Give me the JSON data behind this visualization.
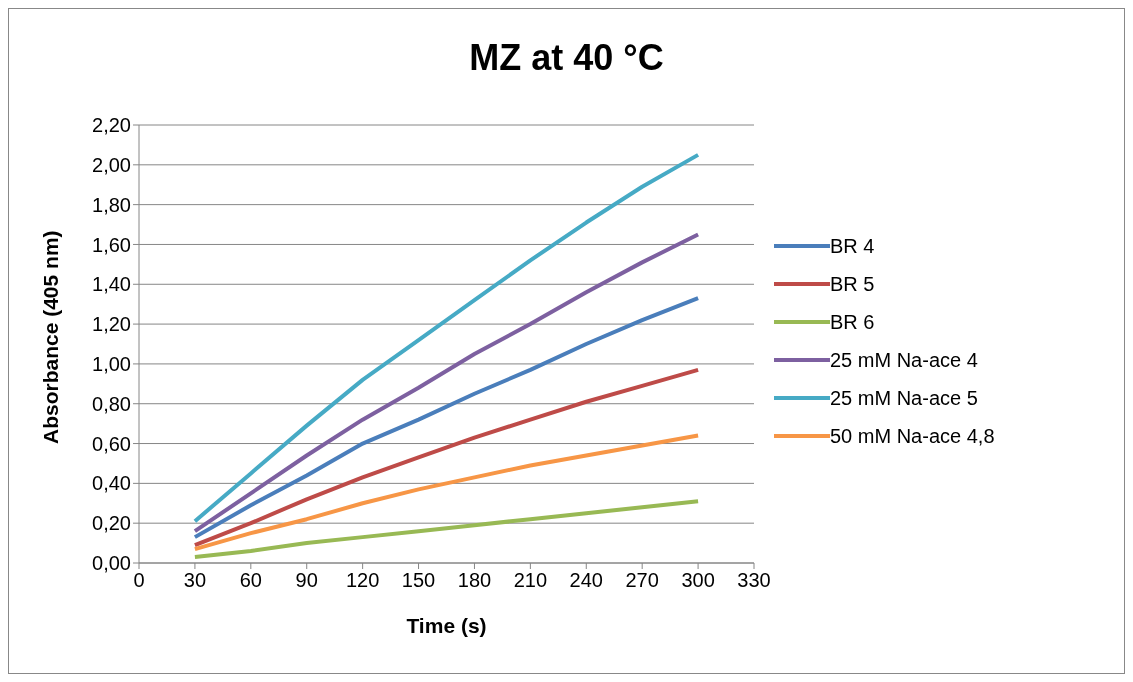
{
  "chart_data": {
    "type": "line",
    "title": "MZ at 40 °C",
    "xlabel": "Time (s)",
    "ylabel": "Absorbance (405 nm)",
    "x": [
      30,
      60,
      90,
      120,
      150,
      180,
      210,
      240,
      270,
      300
    ],
    "series": [
      {
        "name": "BR 4",
        "color": "#4a7ebb",
        "values": [
          0.13,
          0.29,
          0.44,
          0.6,
          0.72,
          0.85,
          0.97,
          1.1,
          1.22,
          1.33
        ]
      },
      {
        "name": "BR 5",
        "color": "#be4b48",
        "values": [
          0.09,
          0.2,
          0.32,
          0.43,
          0.53,
          0.63,
          0.72,
          0.81,
          0.89,
          0.97
        ]
      },
      {
        "name": "BR 6",
        "color": "#98b954",
        "values": [
          0.03,
          0.06,
          0.1,
          0.13,
          0.16,
          0.19,
          0.22,
          0.25,
          0.28,
          0.31
        ]
      },
      {
        "name": "25 mM Na-ace 4",
        "color": "#7d60a0",
        "values": [
          0.16,
          0.35,
          0.54,
          0.72,
          0.88,
          1.05,
          1.2,
          1.36,
          1.51,
          1.65
        ]
      },
      {
        "name": "25 mM Na-ace 5",
        "color": "#46aac5",
        "values": [
          0.21,
          0.45,
          0.69,
          0.92,
          1.12,
          1.32,
          1.52,
          1.71,
          1.89,
          2.05
        ]
      },
      {
        "name": "50 mM Na-ace 4,8",
        "color": "#f79646",
        "values": [
          0.07,
          0.15,
          0.22,
          0.3,
          0.37,
          0.43,
          0.49,
          0.54,
          0.59,
          0.64
        ]
      }
    ],
    "xlim": [
      0,
      330
    ],
    "xticks": [
      0,
      30,
      60,
      90,
      120,
      150,
      180,
      210,
      240,
      270,
      300,
      330
    ],
    "ylim": [
      0,
      2.2
    ],
    "yticks": [
      {
        "value": 0,
        "label": "0,00"
      },
      {
        "value": 0.2,
        "label": "0,20"
      },
      {
        "value": 0.4,
        "label": "0,40"
      },
      {
        "value": 0.6,
        "label": "0,60"
      },
      {
        "value": 0.8,
        "label": "0,80"
      },
      {
        "value": 1.0,
        "label": "1,00"
      },
      {
        "value": 1.2,
        "label": "1,20"
      },
      {
        "value": 1.4,
        "label": "1,40"
      },
      {
        "value": 1.6,
        "label": "1,60"
      },
      {
        "value": 1.8,
        "label": "1,80"
      },
      {
        "value": 2.0,
        "label": "2,00"
      },
      {
        "value": 2.2,
        "label": "2,20"
      }
    ],
    "grid": "y",
    "legend": "right",
    "marker": "none",
    "line_style": "solid"
  }
}
